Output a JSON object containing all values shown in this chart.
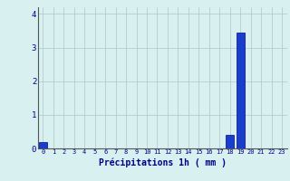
{
  "hours": [
    0,
    1,
    2,
    3,
    4,
    5,
    6,
    7,
    8,
    9,
    10,
    11,
    12,
    13,
    14,
    15,
    16,
    17,
    18,
    19,
    20,
    21,
    22,
    23
  ],
  "values": [
    0.2,
    0,
    0,
    0,
    0,
    0,
    0,
    0,
    0,
    0,
    0,
    0,
    0,
    0,
    0,
    0,
    0,
    0,
    0.4,
    3.45,
    0,
    0,
    0,
    0
  ],
  "bar_color": "#1a3ecc",
  "bar_edge_color": "#0000aa",
  "background_color": "#d8f0f0",
  "grid_color": "#aac8c8",
  "xlabel": "Précipitations 1h ( mm )",
  "xlabel_color": "#00008B",
  "tick_color": "#00008B",
  "ylim": [
    0,
    4.2
  ],
  "yticks": [
    0,
    1,
    2,
    3,
    4
  ],
  "xlim": [
    -0.5,
    23.5
  ]
}
